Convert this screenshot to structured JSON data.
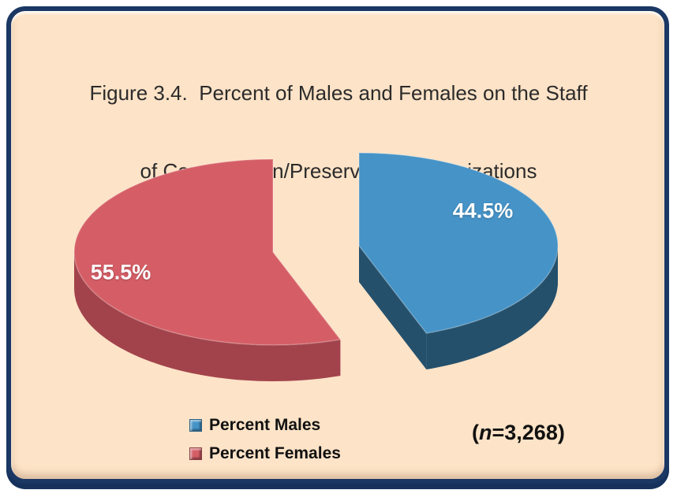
{
  "figure": {
    "background_color": "#FDE3C7",
    "border_color": "#1B3764"
  },
  "title": {
    "line1": "Figure 3.4.  Percent of Males and Females on the Staff",
    "line2": "of Conservation/Preservation Organizations"
  },
  "chart_data": {
    "type": "pie",
    "style": "3d-exploded",
    "title": "Figure 3.4. Percent of Males and Females on the Staff of Conservation/Preservation Organizations",
    "unit": "percent",
    "legend_position": "bottom-left",
    "sample_size_label": "(n=3,268)",
    "slices": [
      {
        "name": "Percent Males",
        "value": 44.5,
        "label": "44.5%",
        "color": "#4593C7",
        "side_color": "#24506C",
        "label_color": "#FFFFFF"
      },
      {
        "name": "Percent Females",
        "value": 55.5,
        "label": "55.5%",
        "color": "#D55E66",
        "side_color": "#A2434C",
        "label_color": "#FFFFFF"
      }
    ]
  },
  "annotation": {
    "open": "(",
    "variable": "n",
    "rest": "=3,268)"
  }
}
